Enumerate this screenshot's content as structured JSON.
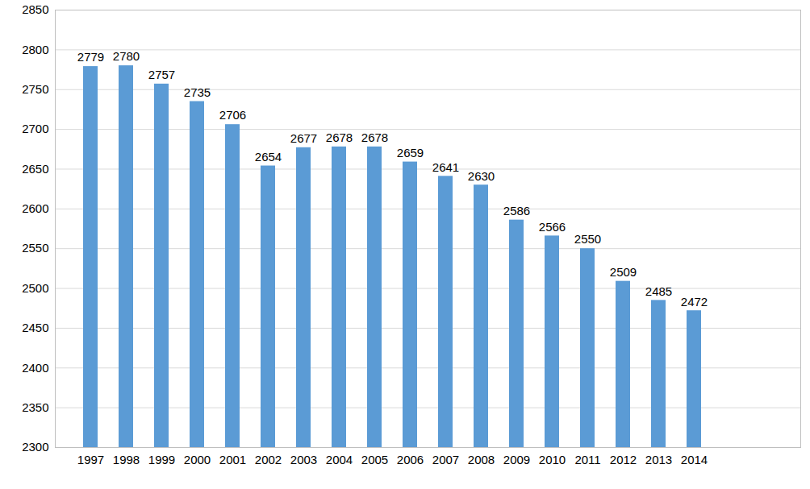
{
  "chart_data": {
    "type": "bar",
    "categories": [
      "1997",
      "1998",
      "1999",
      "2000",
      "2001",
      "2002",
      "2003",
      "2004",
      "2005",
      "2006",
      "2007",
      "2008",
      "2009",
      "2010",
      "2011",
      "2012",
      "2013",
      "2014",
      null,
      null
    ],
    "values": [
      2779,
      2780,
      2757,
      2735,
      2706,
      2654,
      2677,
      2678,
      2678,
      2659,
      2641,
      2630,
      2586,
      2566,
      2550,
      2509,
      2485,
      2472,
      null,
      null
    ],
    "color": "#5b9bd5",
    "ylim": [
      2300,
      2850
    ],
    "yticks": [
      2300,
      2350,
      2400,
      2450,
      2500,
      2550,
      2600,
      2650,
      2700,
      2750,
      2800,
      2850
    ],
    "grid": true,
    "data_labels": true
  }
}
